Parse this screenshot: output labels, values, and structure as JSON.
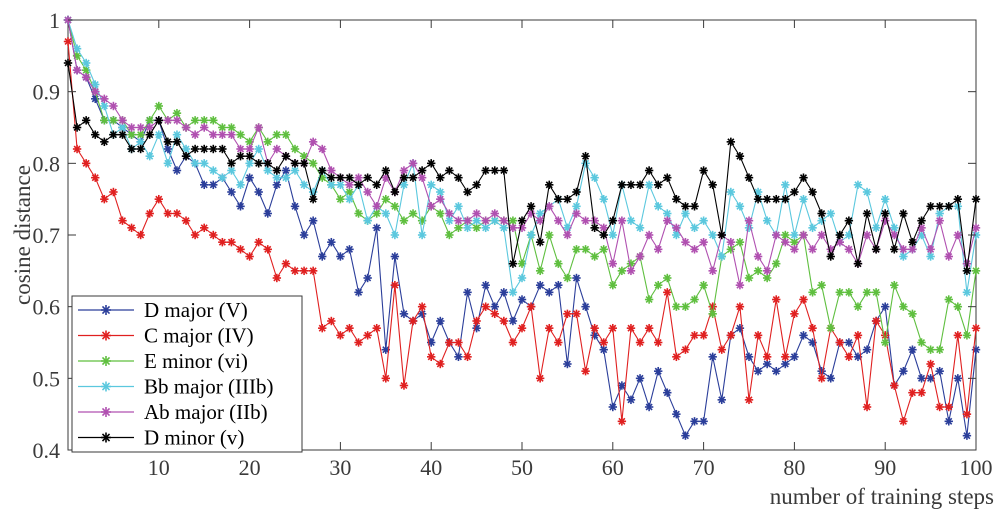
{
  "chart_data": {
    "type": "line",
    "title": "",
    "xlabel": "number of training steps",
    "ylabel": "cosine distance",
    "xlim": [
      0,
      100
    ],
    "ylim": [
      0.4,
      1.0
    ],
    "xticks": [
      10,
      20,
      30,
      40,
      50,
      60,
      70,
      80,
      90,
      100
    ],
    "yticks": [
      0.4,
      0.5,
      0.6,
      0.7,
      0.8,
      0.9,
      1
    ],
    "ytick_labels": [
      "0.4",
      "0.5",
      "0.6",
      "0.7",
      "0.8",
      "0.9",
      "1"
    ],
    "marker": "asterisk",
    "legend_position": "bottom-left",
    "grid": false,
    "x": [
      1,
      2,
      3,
      4,
      5,
      6,
      7,
      8,
      9,
      10,
      11,
      12,
      13,
      14,
      15,
      16,
      17,
      18,
      19,
      20,
      21,
      22,
      23,
      24,
      25,
      26,
      27,
      28,
      29,
      30,
      31,
      32,
      33,
      34,
      35,
      36,
      37,
      38,
      39,
      40,
      41,
      42,
      43,
      44,
      45,
      46,
      47,
      48,
      49,
      50,
      51,
      52,
      53,
      54,
      55,
      56,
      57,
      58,
      59,
      60,
      61,
      62,
      63,
      64,
      65,
      66,
      67,
      68,
      69,
      70,
      71,
      72,
      73,
      74,
      75,
      76,
      77,
      78,
      79,
      80,
      81,
      82,
      83,
      84,
      85,
      86,
      87,
      88,
      89,
      90,
      91,
      92,
      93,
      94,
      95,
      96,
      97,
      98,
      99,
      100,
      101
    ],
    "series": [
      {
        "name": "D major (V)",
        "color": "#2b3e9a",
        "values": [
          1.0,
          0.93,
          0.92,
          0.89,
          0.86,
          0.86,
          0.85,
          0.84,
          0.83,
          0.86,
          0.86,
          0.82,
          0.79,
          0.81,
          0.8,
          0.77,
          0.77,
          0.78,
          0.76,
          0.74,
          0.78,
          0.76,
          0.73,
          0.77,
          0.79,
          0.74,
          0.7,
          0.72,
          0.67,
          0.69,
          0.67,
          0.68,
          0.62,
          0.64,
          0.71,
          0.54,
          0.67,
          0.59,
          0.58,
          0.59,
          0.55,
          0.58,
          0.55,
          0.53,
          0.62,
          0.57,
          0.63,
          0.6,
          0.62,
          0.58,
          0.61,
          0.6,
          0.63,
          0.62,
          0.63,
          0.52,
          0.64,
          0.6,
          0.56,
          0.54,
          0.46,
          0.49,
          0.47,
          0.5,
          0.46,
          0.51,
          0.48,
          0.45,
          0.42,
          0.44,
          0.44,
          0.53,
          0.47,
          0.56,
          0.57,
          0.53,
          0.51,
          0.52,
          0.51,
          0.52,
          0.53,
          0.56,
          0.55,
          0.51,
          0.5,
          0.55,
          0.55,
          0.53,
          0.54,
          0.58,
          0.6,
          0.49,
          0.51,
          0.54,
          0.5,
          0.5,
          0.51,
          0.44,
          0.5,
          0.42,
          0.54
        ]
      },
      {
        "name": "C major (IV)",
        "color": "#e02020",
        "values": [
          0.97,
          0.82,
          0.8,
          0.78,
          0.75,
          0.76,
          0.72,
          0.71,
          0.7,
          0.73,
          0.75,
          0.73,
          0.73,
          0.72,
          0.7,
          0.71,
          0.7,
          0.69,
          0.69,
          0.68,
          0.67,
          0.69,
          0.68,
          0.64,
          0.66,
          0.65,
          0.65,
          0.65,
          0.57,
          0.58,
          0.56,
          0.57,
          0.55,
          0.56,
          0.57,
          0.5,
          0.63,
          0.49,
          0.58,
          0.6,
          0.53,
          0.52,
          0.55,
          0.55,
          0.53,
          0.58,
          0.6,
          0.59,
          0.58,
          0.55,
          0.57,
          0.6,
          0.5,
          0.57,
          0.55,
          0.59,
          0.59,
          0.51,
          0.57,
          0.55,
          0.57,
          0.44,
          0.57,
          0.55,
          0.57,
          0.55,
          0.62,
          0.53,
          0.54,
          0.56,
          0.56,
          0.6,
          0.54,
          0.56,
          0.6,
          0.47,
          0.56,
          0.53,
          0.61,
          0.53,
          0.59,
          0.61,
          0.57,
          0.5,
          0.57,
          0.55,
          0.53,
          0.56,
          0.46,
          0.58,
          0.56,
          0.49,
          0.44,
          0.48,
          0.48,
          0.52,
          0.46,
          0.46,
          0.56,
          0.45,
          0.57
        ]
      },
      {
        "name": "E minor (vi)",
        "color": "#5fbf3f",
        "values": [
          1.0,
          0.95,
          0.93,
          0.9,
          0.86,
          0.86,
          0.86,
          0.84,
          0.84,
          0.86,
          0.88,
          0.86,
          0.87,
          0.85,
          0.86,
          0.86,
          0.86,
          0.85,
          0.85,
          0.84,
          0.83,
          0.85,
          0.83,
          0.84,
          0.84,
          0.82,
          0.81,
          0.8,
          0.78,
          0.77,
          0.75,
          0.76,
          0.73,
          0.72,
          0.73,
          0.75,
          0.74,
          0.72,
          0.73,
          0.72,
          0.74,
          0.73,
          0.7,
          0.71,
          0.72,
          0.71,
          0.72,
          0.72,
          0.72,
          0.72,
          0.66,
          0.7,
          0.65,
          0.7,
          0.66,
          0.64,
          0.68,
          0.68,
          0.67,
          0.68,
          0.63,
          0.65,
          0.66,
          0.67,
          0.61,
          0.63,
          0.64,
          0.6,
          0.6,
          0.61,
          0.63,
          0.59,
          0.67,
          0.68,
          0.69,
          0.64,
          0.65,
          0.64,
          0.66,
          0.7,
          0.69,
          0.7,
          0.62,
          0.63,
          0.57,
          0.62,
          0.62,
          0.6,
          0.62,
          0.62,
          0.55,
          0.63,
          0.6,
          0.59,
          0.55,
          0.54,
          0.54,
          0.61,
          0.6,
          0.56,
          0.65
        ]
      },
      {
        "name": "Bb major (IIIb)",
        "color": "#5bc8de",
        "values": [
          1.0,
          0.96,
          0.94,
          0.91,
          0.88,
          0.84,
          0.85,
          0.82,
          0.83,
          0.81,
          0.84,
          0.8,
          0.84,
          0.82,
          0.8,
          0.8,
          0.79,
          0.78,
          0.79,
          0.77,
          0.8,
          0.82,
          0.79,
          0.78,
          0.78,
          0.79,
          0.77,
          0.76,
          0.79,
          0.77,
          0.77,
          0.75,
          0.77,
          0.72,
          0.74,
          0.73,
          0.7,
          0.77,
          0.8,
          0.7,
          0.77,
          0.76,
          0.72,
          0.74,
          0.71,
          0.72,
          0.71,
          0.72,
          0.71,
          0.62,
          0.64,
          0.7,
          0.73,
          0.74,
          0.75,
          0.71,
          0.74,
          0.8,
          0.78,
          0.75,
          0.7,
          0.77,
          0.72,
          0.71,
          0.77,
          0.74,
          0.73,
          0.7,
          0.73,
          0.71,
          0.72,
          0.7,
          0.67,
          0.76,
          0.74,
          0.71,
          0.76,
          0.72,
          0.7,
          0.77,
          0.7,
          0.75,
          0.71,
          0.72,
          0.73,
          0.69,
          0.7,
          0.77,
          0.76,
          0.71,
          0.75,
          0.71,
          0.67,
          0.68,
          0.7,
          0.67,
          0.73,
          0.74,
          0.74,
          0.62,
          0.7
        ]
      },
      {
        "name": "Ab major (IIb)",
        "color": "#b050b0",
        "values": [
          1.0,
          0.93,
          0.92,
          0.9,
          0.89,
          0.88,
          0.86,
          0.85,
          0.85,
          0.85,
          0.86,
          0.86,
          0.86,
          0.85,
          0.84,
          0.85,
          0.84,
          0.84,
          0.84,
          0.82,
          0.82,
          0.85,
          0.8,
          0.82,
          0.81,
          0.8,
          0.8,
          0.83,
          0.82,
          0.79,
          0.78,
          0.77,
          0.78,
          0.76,
          0.74,
          0.78,
          0.76,
          0.79,
          0.8,
          0.78,
          0.74,
          0.75,
          0.73,
          0.72,
          0.72,
          0.73,
          0.72,
          0.73,
          0.72,
          0.71,
          0.71,
          0.73,
          0.72,
          0.74,
          0.72,
          0.7,
          0.73,
          0.72,
          0.72,
          0.71,
          0.66,
          0.72,
          0.65,
          0.67,
          0.7,
          0.68,
          0.72,
          0.71,
          0.69,
          0.68,
          0.69,
          0.65,
          0.7,
          0.69,
          0.63,
          0.72,
          0.67,
          0.65,
          0.7,
          0.69,
          0.68,
          0.7,
          0.68,
          0.7,
          0.68,
          0.69,
          0.68,
          0.66,
          0.7,
          0.68,
          0.72,
          0.7,
          0.68,
          0.68,
          0.71,
          0.68,
          0.72,
          0.67,
          0.7,
          0.66,
          0.71
        ]
      },
      {
        "name": "D minor (v)",
        "color": "#000000",
        "values": [
          0.94,
          0.85,
          0.86,
          0.84,
          0.83,
          0.84,
          0.84,
          0.82,
          0.82,
          0.84,
          0.86,
          0.83,
          0.83,
          0.81,
          0.82,
          0.82,
          0.82,
          0.82,
          0.8,
          0.81,
          0.81,
          0.8,
          0.8,
          0.79,
          0.81,
          0.8,
          0.8,
          0.75,
          0.79,
          0.78,
          0.78,
          0.78,
          0.77,
          0.78,
          0.77,
          0.79,
          0.76,
          0.78,
          0.78,
          0.79,
          0.8,
          0.78,
          0.79,
          0.78,
          0.76,
          0.77,
          0.79,
          0.79,
          0.79,
          0.66,
          0.72,
          0.74,
          0.69,
          0.77,
          0.75,
          0.75,
          0.76,
          0.81,
          0.71,
          0.7,
          0.72,
          0.77,
          0.77,
          0.77,
          0.79,
          0.77,
          0.78,
          0.75,
          0.74,
          0.74,
          0.79,
          0.77,
          0.7,
          0.83,
          0.81,
          0.78,
          0.75,
          0.75,
          0.75,
          0.75,
          0.76,
          0.78,
          0.76,
          0.73,
          0.67,
          0.7,
          0.72,
          0.66,
          0.73,
          0.68,
          0.73,
          0.68,
          0.73,
          0.69,
          0.72,
          0.74,
          0.74,
          0.74,
          0.75,
          0.65,
          0.75
        ]
      }
    ]
  }
}
